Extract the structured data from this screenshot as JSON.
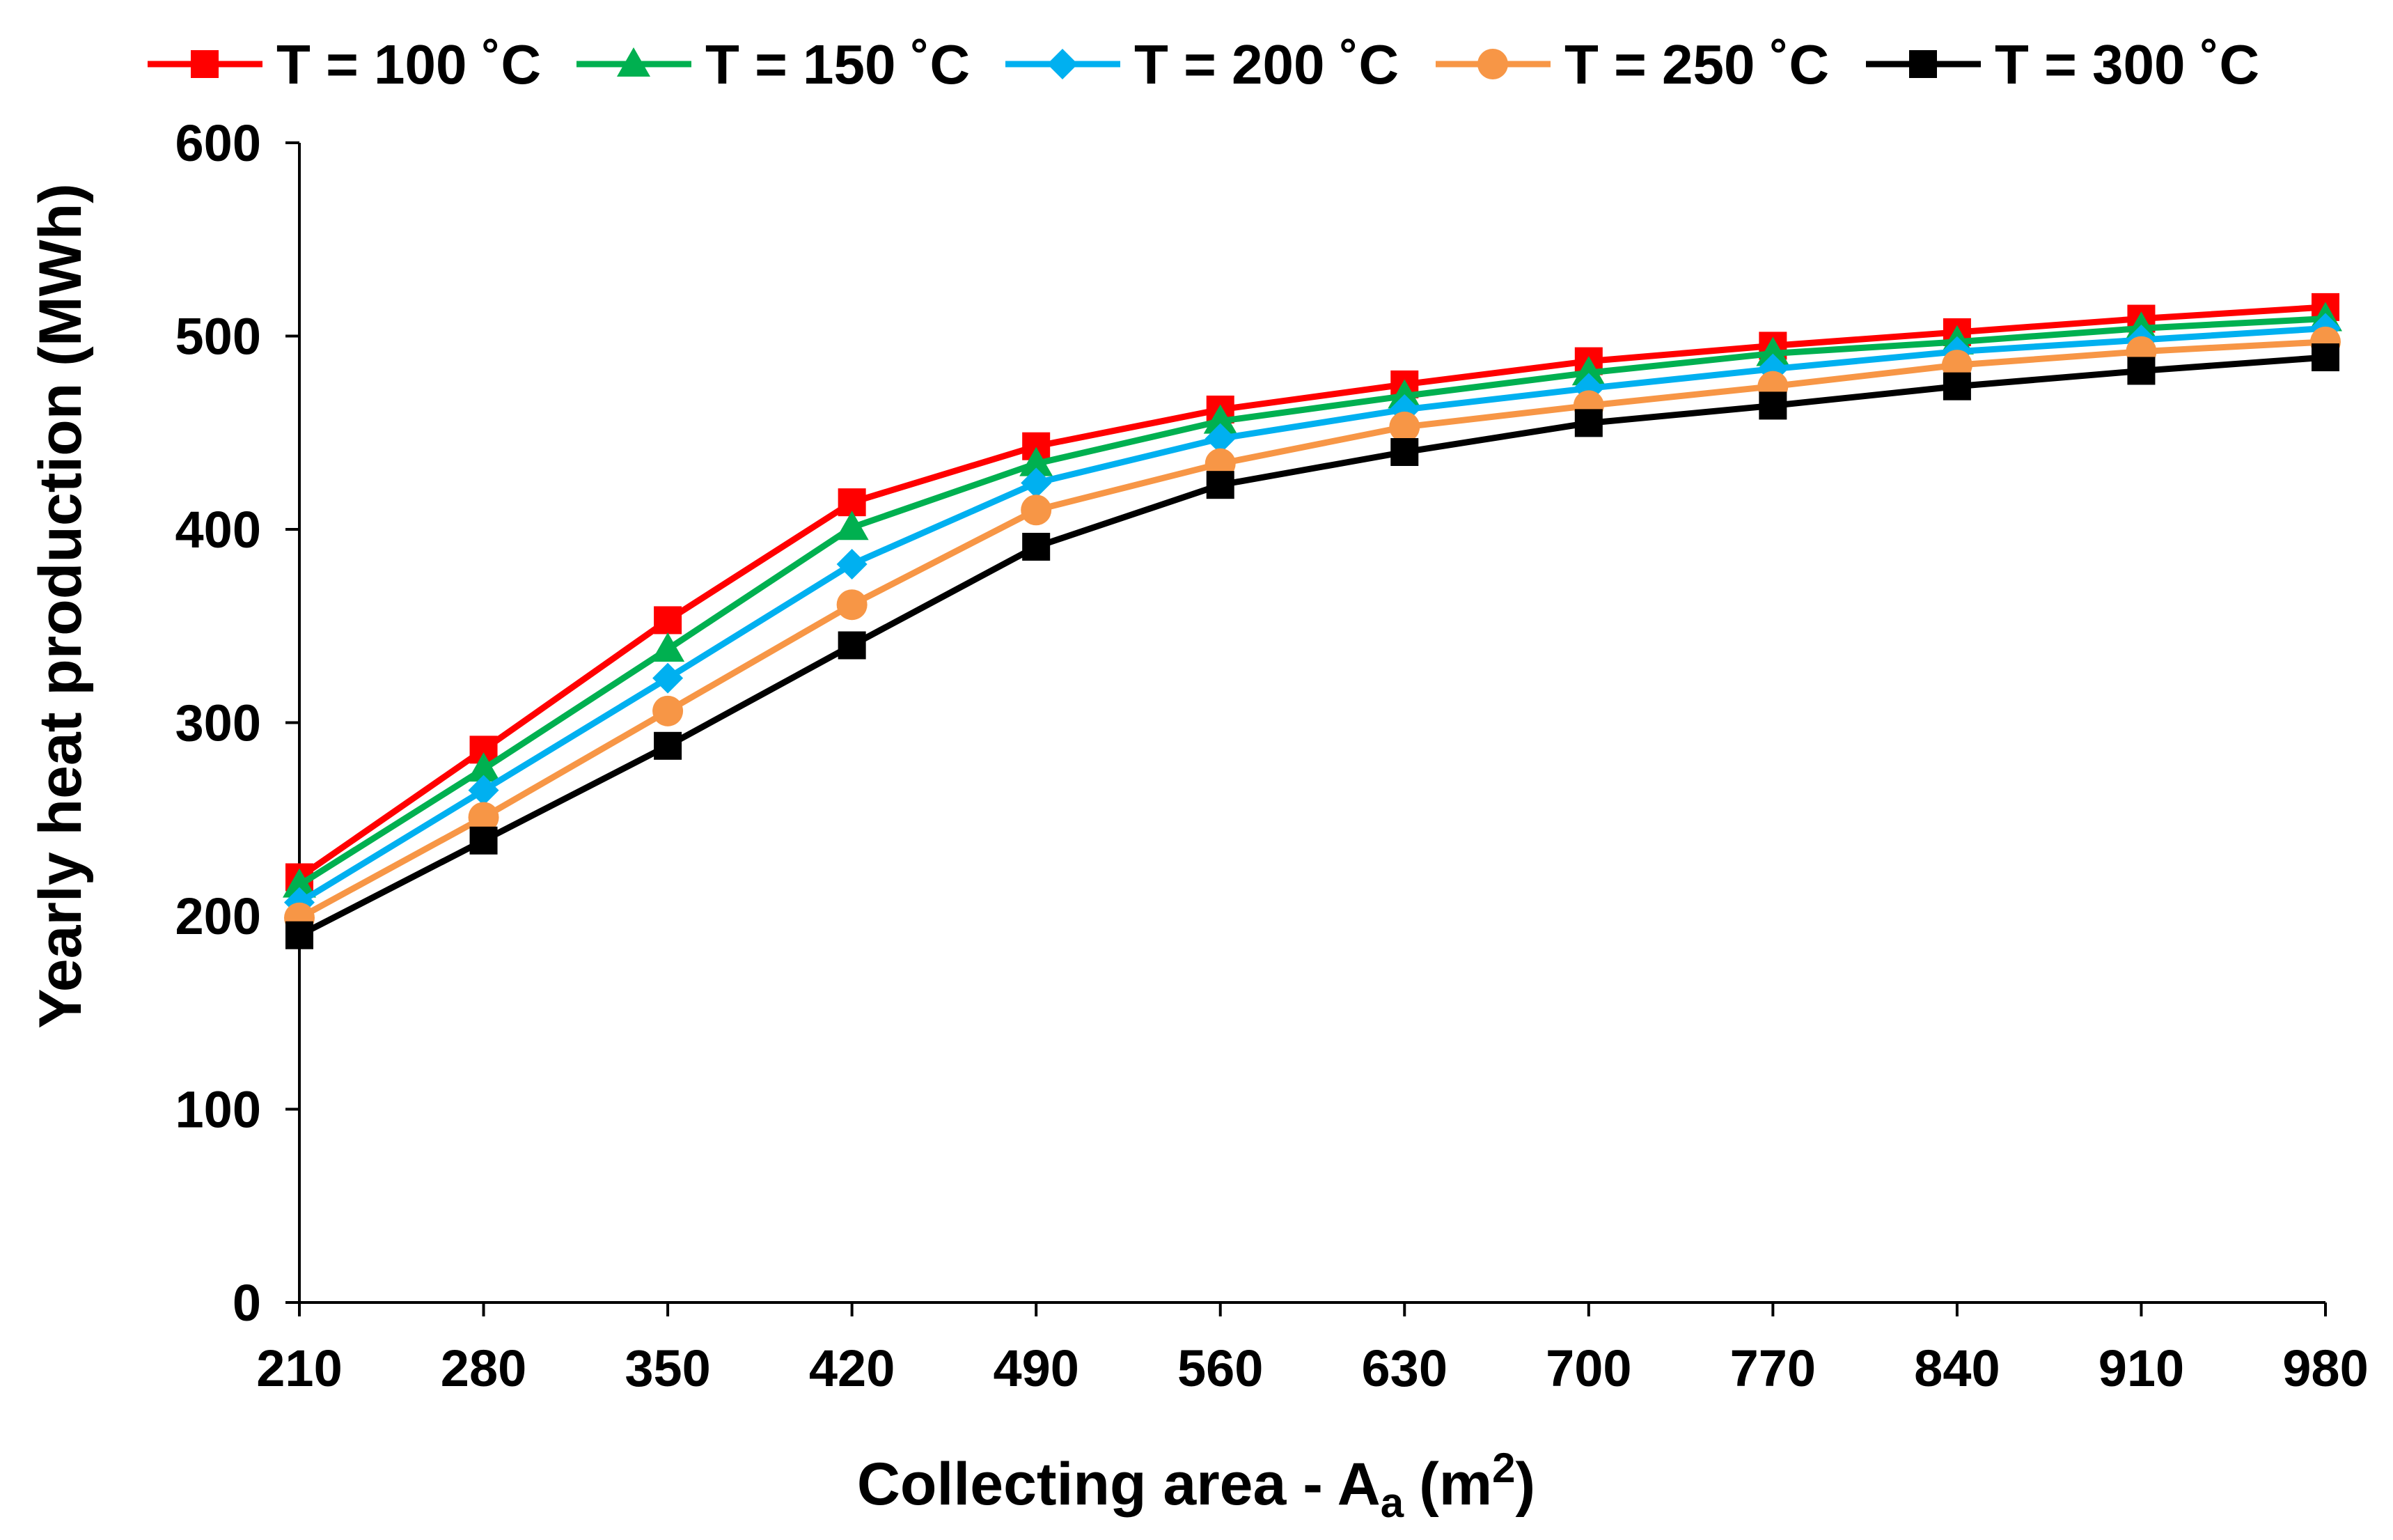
{
  "chart_data": {
    "type": "line",
    "xlabel": "Collecting area - A",
    "xlabel_sub": "a",
    "xlabel_unit_open": "(m",
    "xlabel_sup": "2",
    "xlabel_unit_close": ")",
    "ylabel": "Yearly heat production (MWh)",
    "x": [
      210,
      280,
      350,
      420,
      490,
      560,
      630,
      700,
      770,
      840,
      910,
      980
    ],
    "ylim": [
      0,
      600
    ],
    "yticks": [
      0,
      100,
      200,
      300,
      400,
      500,
      600
    ],
    "grid": false,
    "legend_position": "top",
    "series": [
      {
        "name": "T = 100 ˚C",
        "color": "#ff0000",
        "marker": "square",
        "values": [
          220,
          286,
          353,
          414,
          443,
          462,
          475,
          487,
          495,
          502,
          509,
          515
        ]
      },
      {
        "name": "T = 150 ˚C",
        "color": "#00b050",
        "marker": "triangle",
        "values": [
          216,
          276,
          338,
          401,
          434,
          456,
          469,
          481,
          491,
          497,
          504,
          509
        ]
      },
      {
        "name": "T = 200 ˚C",
        "color": "#00b0f0",
        "marker": "diamond",
        "values": [
          207,
          265,
          323,
          382,
          424,
          447,
          462,
          473,
          483,
          492,
          498,
          504
        ]
      },
      {
        "name": "T = 250 ˚C",
        "color": "#f79646",
        "marker": "circle",
        "values": [
          199,
          251,
          306,
          361,
          410,
          434,
          453,
          464,
          474,
          485,
          492,
          497
        ]
      },
      {
        "name": "T = 300 ˚C",
        "color": "#000000",
        "marker": "square",
        "values": [
          190,
          239,
          288,
          340,
          391,
          423,
          440,
          455,
          464,
          474,
          482,
          489
        ]
      }
    ]
  }
}
